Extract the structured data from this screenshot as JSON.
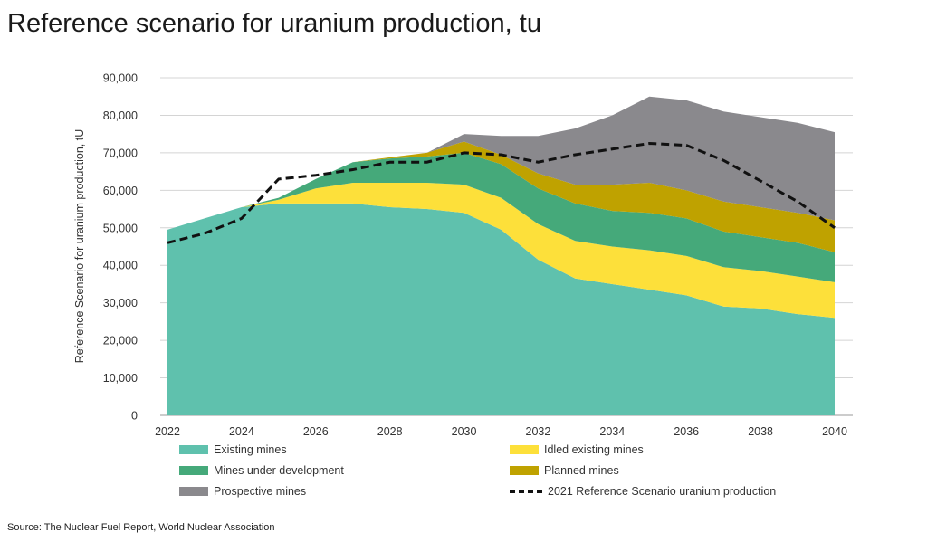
{
  "title": "Reference scenario for uranium production, tu",
  "source": "Source: The Nuclear Fuel Report, World Nuclear Association",
  "chart_data": {
    "type": "area",
    "stacked": true,
    "ylabel": "Reference Scenario for uranium production, tU",
    "xlabel": "",
    "ylim": [
      0,
      90000
    ],
    "yticks": [
      "0",
      "10,000",
      "20,000",
      "30,000",
      "40,000",
      "50,000",
      "60,000",
      "70,000",
      "80,000",
      "90,000"
    ],
    "xticks": [
      "2022",
      "2024",
      "2026",
      "2028",
      "2030",
      "2032",
      "2034",
      "2036",
      "2038",
      "2040"
    ],
    "grid": true,
    "legend_position": "bottom",
    "x": [
      2022,
      2023,
      2024,
      2025,
      2026,
      2027,
      2028,
      2029,
      2030,
      2031,
      2032,
      2033,
      2034,
      2035,
      2036,
      2037,
      2038,
      2039,
      2040
    ],
    "series": [
      {
        "name": "Existing mines",
        "color": "#5fc1ad",
        "values": [
          49500,
          52500,
          55500,
          56500,
          56500,
          56500,
          55500,
          55000,
          54000,
          49500,
          41500,
          36500,
          35000,
          33500,
          32000,
          29000,
          28500,
          27000,
          26000
        ]
      },
      {
        "name": "Idled existing mines",
        "color": "#fde03a",
        "values": [
          0,
          0,
          0,
          1000,
          4000,
          5500,
          6500,
          7000,
          7500,
          8500,
          9500,
          10000,
          10000,
          10500,
          10500,
          10500,
          10000,
          10000,
          9500
        ]
      },
      {
        "name": "Mines under development",
        "color": "#45a97a",
        "values": [
          0,
          0,
          0,
          500,
          2500,
          5500,
          6500,
          7000,
          8500,
          9000,
          9500,
          10000,
          9500,
          10000,
          10000,
          9500,
          9000,
          9000,
          8000
        ]
      },
      {
        "name": "Planned mines",
        "color": "#bfa200",
        "values": [
          0,
          0,
          0,
          0,
          0,
          0,
          300,
          1000,
          3000,
          2500,
          4000,
          5000,
          7000,
          8000,
          7500,
          8000,
          8000,
          8000,
          8500
        ]
      },
      {
        "name": "Prospective mines",
        "color": "#8a898d",
        "values": [
          0,
          0,
          0,
          0,
          0,
          0,
          0,
          0,
          2000,
          5000,
          10000,
          15000,
          18500,
          23000,
          24000,
          24000,
          24000,
          24000,
          23500
        ]
      }
    ],
    "line": {
      "name": "2021 Reference Scenario uranium production",
      "color": "#111111",
      "style": "dashed",
      "values": [
        46000,
        48500,
        52500,
        63000,
        64000,
        65500,
        67500,
        67500,
        70000,
        69500,
        67500,
        69500,
        71000,
        72500,
        72000,
        68000,
        62500,
        57000,
        50000
      ]
    }
  }
}
